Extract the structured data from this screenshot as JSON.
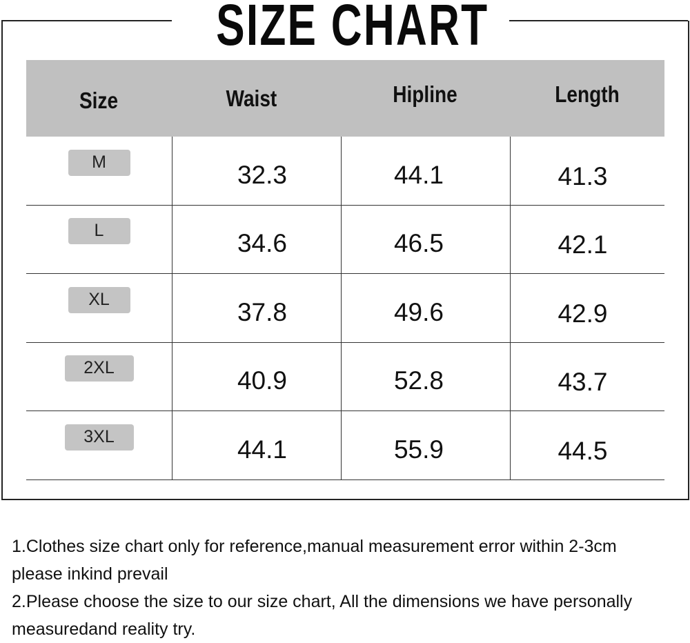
{
  "title": "SIZE CHART",
  "table": {
    "headers": [
      "Size",
      "Waist",
      "Hipline",
      "Length"
    ],
    "rows": [
      {
        "size": "M",
        "waist": "32.3",
        "hipline": "44.1",
        "length": "41.3"
      },
      {
        "size": "L",
        "waist": "34.6",
        "hipline": "46.5",
        "length": "42.1"
      },
      {
        "size": "XL",
        "waist": "37.8",
        "hipline": "49.6",
        "length": "42.9"
      },
      {
        "size": "2XL",
        "waist": "40.9",
        "hipline": "52.8",
        "length": "43.7"
      },
      {
        "size": "3XL",
        "waist": "44.1",
        "hipline": "55.9",
        "length": "44.5"
      }
    ]
  },
  "notes": [
    "1.Clothes size chart only for reference,manual measurement error within 2-3cm",
    "please inkind prevail",
    "2.Please choose the size to our size chart, All the dimensions we have personally",
    "measuredand reality try."
  ],
  "colors": {
    "header_bg": "#c0c0c0",
    "badge_bg": "#c4c4c4",
    "border": "#222222"
  }
}
